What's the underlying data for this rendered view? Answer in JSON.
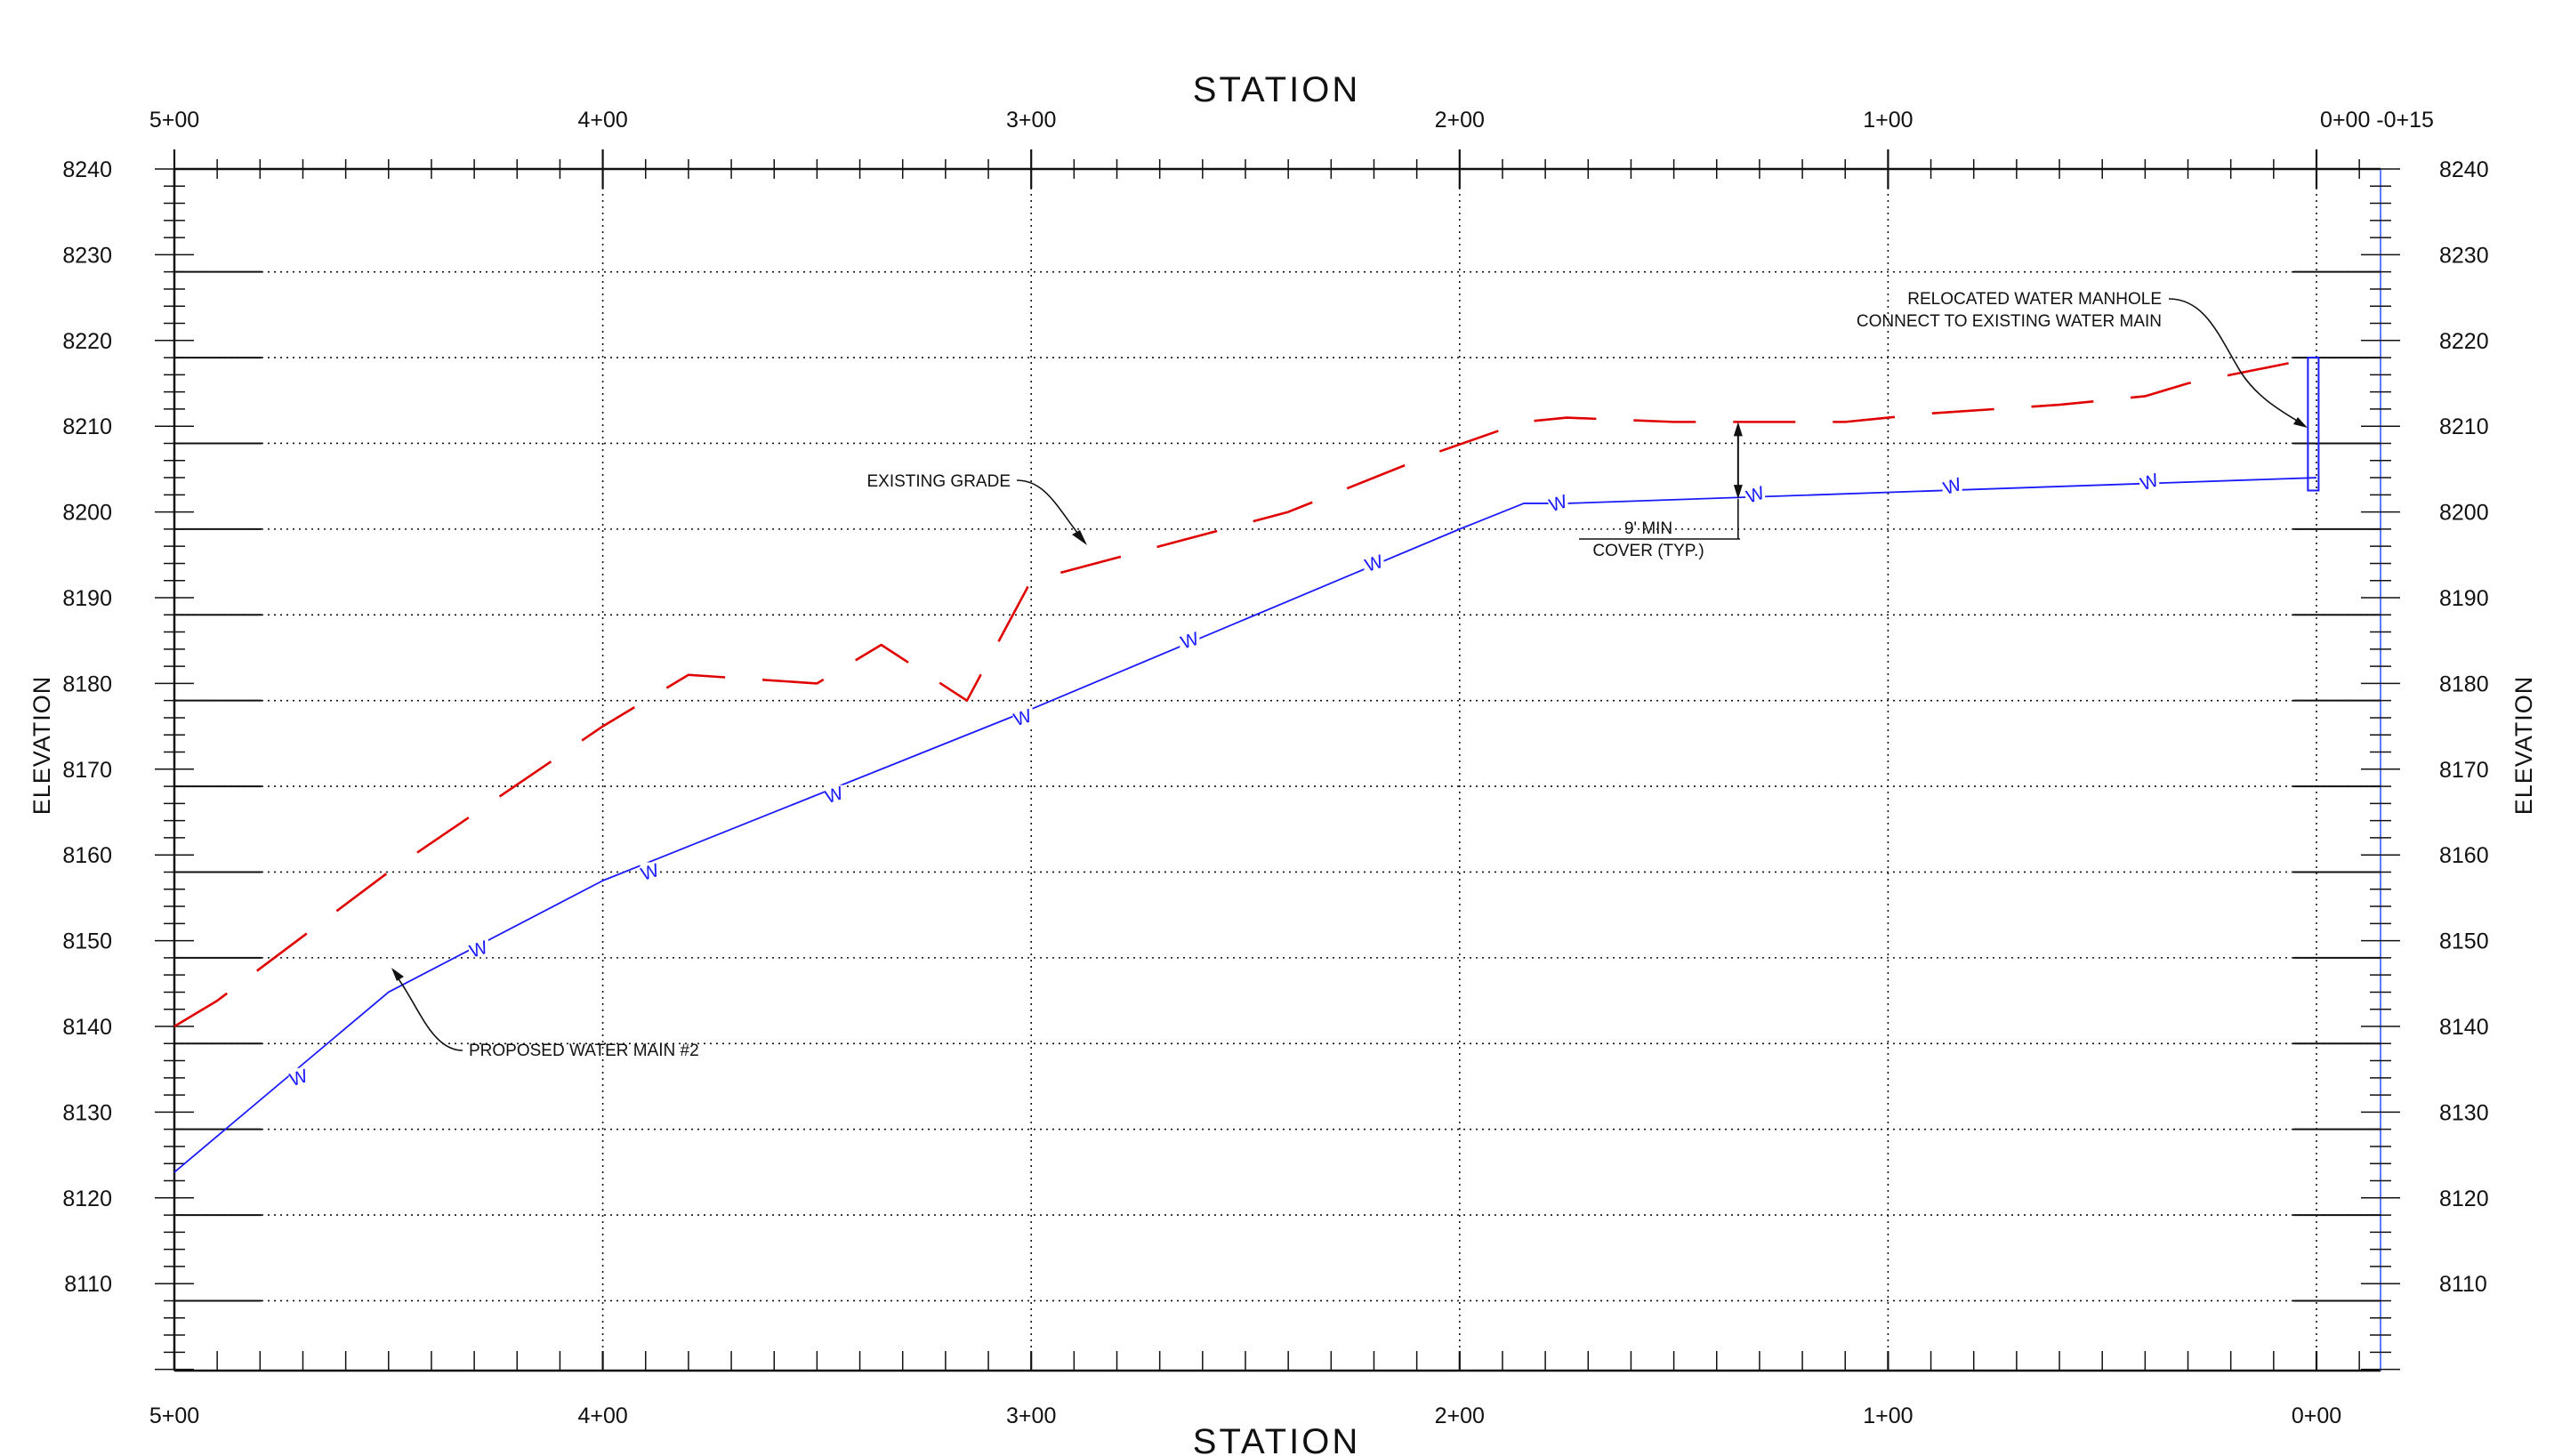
{
  "titles": {
    "top": "STATION",
    "bottom": "STATION"
  },
  "axis_titles": {
    "left": "ELEVATION",
    "right": "ELEVATION"
  },
  "stations": {
    "top": [
      {
        "station": 500,
        "label": "5+00"
      },
      {
        "station": 400,
        "label": "4+00"
      },
      {
        "station": 300,
        "label": "3+00"
      },
      {
        "station": 200,
        "label": "2+00"
      },
      {
        "station": 100,
        "label": "1+00"
      },
      {
        "station": 0,
        "label": "0+00 -0+15"
      }
    ],
    "bottom": [
      {
        "station": 500,
        "label": "5+00"
      },
      {
        "station": 400,
        "label": "4+00"
      },
      {
        "station": 300,
        "label": "3+00"
      },
      {
        "station": 200,
        "label": "2+00"
      },
      {
        "station": 100,
        "label": "1+00"
      },
      {
        "station": 0,
        "label": "0+00"
      }
    ]
  },
  "elevations": [
    8240,
    8230,
    8220,
    8210,
    8200,
    8190,
    8180,
    8170,
    8160,
    8150,
    8140,
    8130,
    8120,
    8110
  ],
  "annotations": {
    "existing_grade": "EXISTING GRADE",
    "proposed_main": "PROPOSED WATER MAIN #2",
    "manhole_line1": "RELOCATED WATER MANHOLE",
    "manhole_line2": "CONNECT TO EXISTING WATER MAIN",
    "cover_line1": "9' MIN",
    "cover_line2": "COVER (TYP.)"
  },
  "water_marker": "W",
  "colors": {
    "existing_grade": "#e00000",
    "proposed_main": "#1a1aff",
    "grid": "#111111",
    "frame": "#111111"
  },
  "chart_data": {
    "type": "line",
    "x_axis": "station (ft)",
    "x_reversed": true,
    "xlim": [
      -15,
      500
    ],
    "ylim": [
      8100,
      8240
    ],
    "series": [
      {
        "name": "EXISTING GRADE",
        "style": "dashed",
        "x": [
          500,
          490,
          450,
          400,
          380,
          350,
          335,
          315,
          300,
          270,
          240,
          205,
          185,
          175,
          150,
          110,
          100,
          90,
          60,
          40,
          30,
          0
        ],
        "y": [
          8140,
          8143,
          8158,
          8175,
          8181,
          8180,
          8184.5,
          8178,
          8192,
          8196,
          8200,
          8207,
          8210.5,
          8211,
          8210.5,
          8210.5,
          8211,
          8211.5,
          8212.5,
          8213.5,
          8215,
          8218
        ]
      },
      {
        "name": "PROPOSED WATER MAIN #2",
        "style": "solid",
        "x": [
          500,
          450,
          400,
          300,
          200,
          185,
          175,
          0
        ],
        "y": [
          8123,
          8144,
          8157,
          8177,
          8198,
          8201,
          8201,
          8204
        ]
      }
    ],
    "w_markers": {
      "x": [
        471,
        429,
        389,
        346,
        302,
        263,
        220,
        177,
        131,
        85,
        39
      ],
      "y": [
        8134,
        8149,
        8158,
        8167,
        8176,
        8185,
        8194,
        8201,
        8202,
        8203,
        8203.5
      ]
    },
    "manhole": {
      "station_left": 2,
      "station_right": -0.5,
      "top_elevation": 8218,
      "bottom_elevation": 8202.5
    },
    "cover_dimension": {
      "station": 135,
      "top_elevation": 8210.5,
      "bottom_elevation": 8201.5
    }
  }
}
